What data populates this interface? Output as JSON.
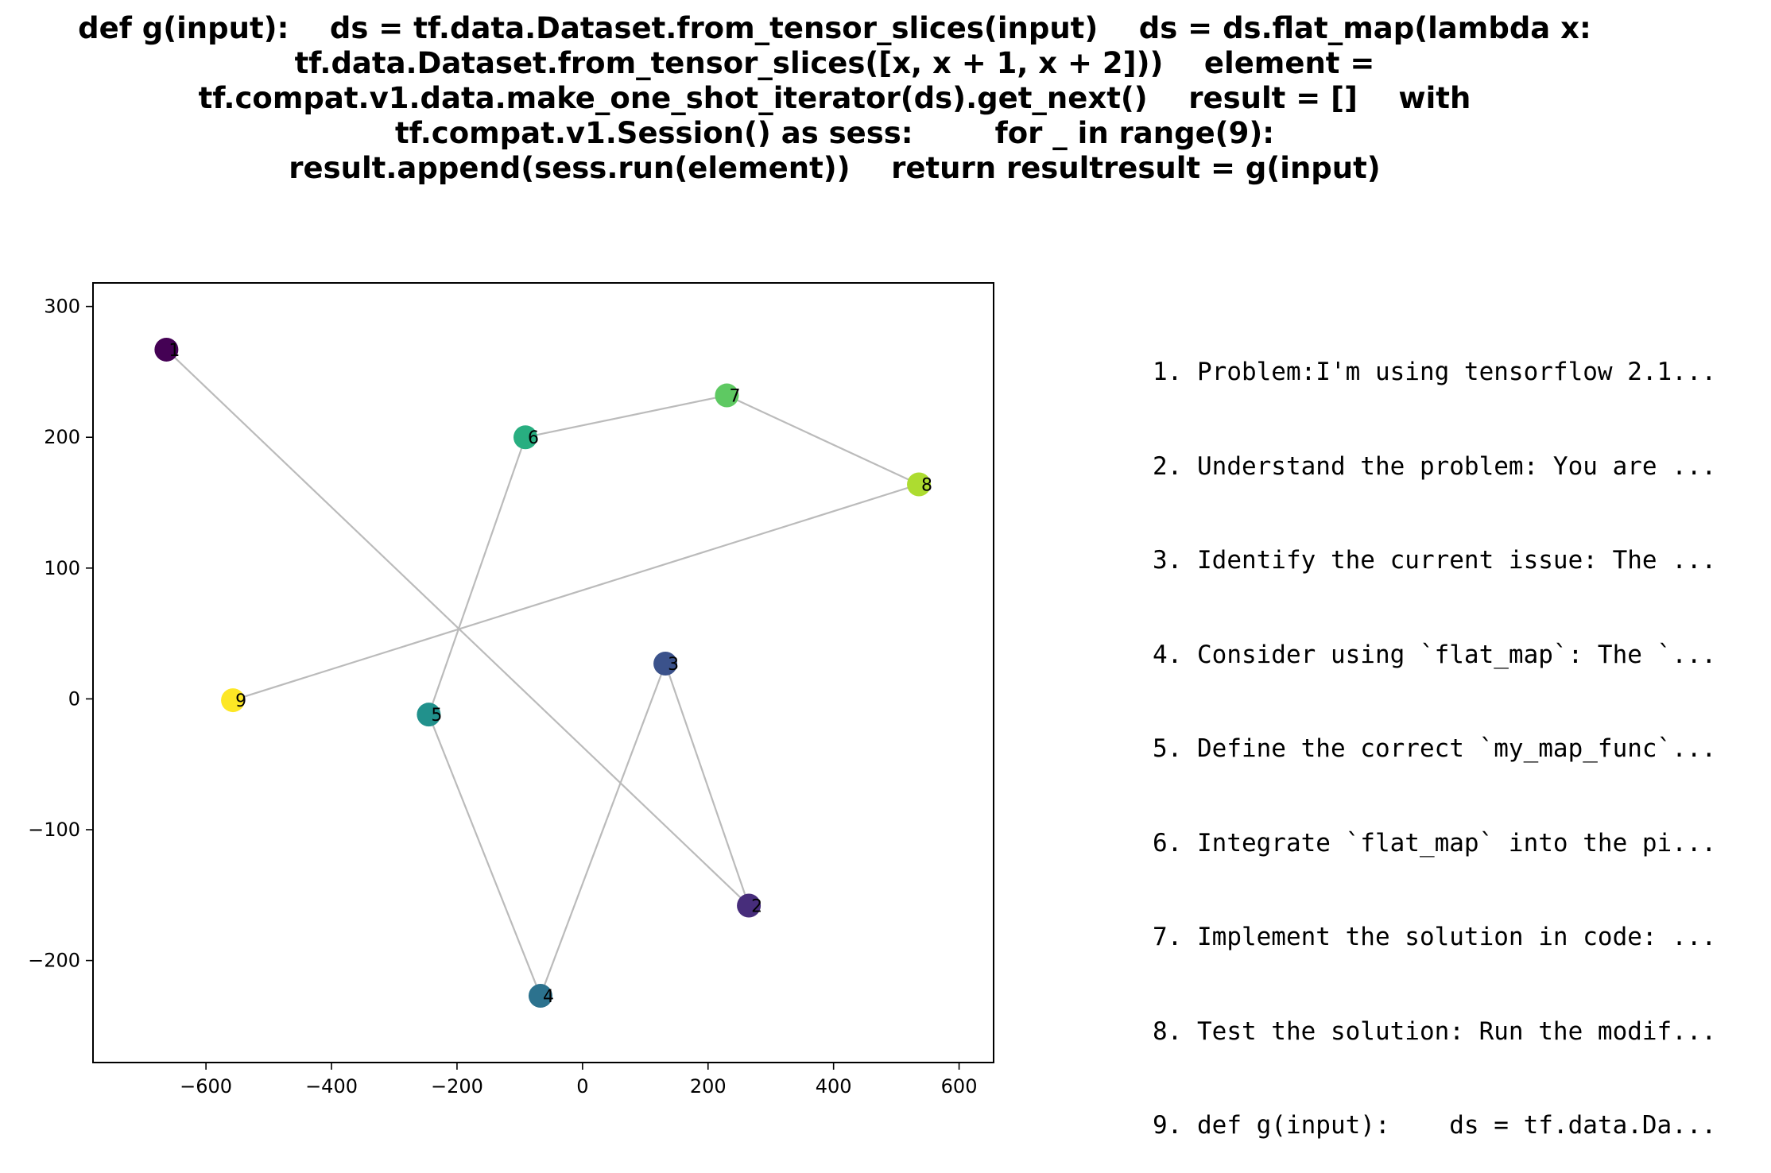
{
  "chart_data": {
    "type": "scatter",
    "title_lines": [
      "def g(input):    ds = tf.data.Dataset.from_tensor_slices(input)    ds = ds.flat_map(lambda x:",
      "tf.data.Dataset.from_tensor_slices([x, x + 1, x + 2]))    element =",
      "tf.compat.v1.data.make_one_shot_iterator(ds).get_next()    result = []    with",
      "tf.compat.v1.Session() as sess:        for _ in range(9):",
      "result.append(sess.run(element))    return resultresult = g(input)"
    ],
    "xlabel": "",
    "ylabel": "",
    "xlim": [
      -780,
      655
    ],
    "ylim": [
      -278,
      318
    ],
    "xticks": [
      -600,
      -400,
      -200,
      0,
      200,
      400,
      600
    ],
    "yticks": [
      -200,
      -100,
      0,
      100,
      200,
      300
    ],
    "xtick_labels": [
      "−600",
      "−400",
      "−200",
      "0",
      "200",
      "400",
      "600"
    ],
    "ytick_labels": [
      "−200",
      "−100",
      "0",
      "100",
      "200",
      "300"
    ],
    "grid": false,
    "connect_points_in_order": true,
    "line_color": "#bbbbbb",
    "points": [
      {
        "label": "1",
        "x": -663,
        "y": 267,
        "color": "#440154"
      },
      {
        "label": "2",
        "x": 265,
        "y": -158,
        "color": "#472d7b"
      },
      {
        "label": "3",
        "x": 132,
        "y": 27,
        "color": "#3b528b"
      },
      {
        "label": "4",
        "x": -67,
        "y": -227,
        "color": "#2c728e"
      },
      {
        "label": "5",
        "x": -245,
        "y": -12,
        "color": "#21918c"
      },
      {
        "label": "6",
        "x": -91,
        "y": 200,
        "color": "#28ae80"
      },
      {
        "label": "7",
        "x": 230,
        "y": 232,
        "color": "#5ec962"
      },
      {
        "label": "8",
        "x": 536,
        "y": 164,
        "color": "#addc30"
      },
      {
        "label": "9",
        "x": -557,
        "y": -1,
        "color": "#fde725"
      }
    ]
  },
  "steps": [
    "1. Problem:I'm using tensorflow 2.1...",
    "2. Understand the problem: You are ...",
    "3. Identify the current issue: The ...",
    "4. Consider using `flat_map`: The `...",
    "5. Define the correct `my_map_func`...",
    "6. Integrate `flat_map` into the pi...",
    "7. Implement the solution in code: ...",
    "8. Test the solution: Run the modif...",
    "9. def g(input):    ds = tf.data.Da..."
  ]
}
